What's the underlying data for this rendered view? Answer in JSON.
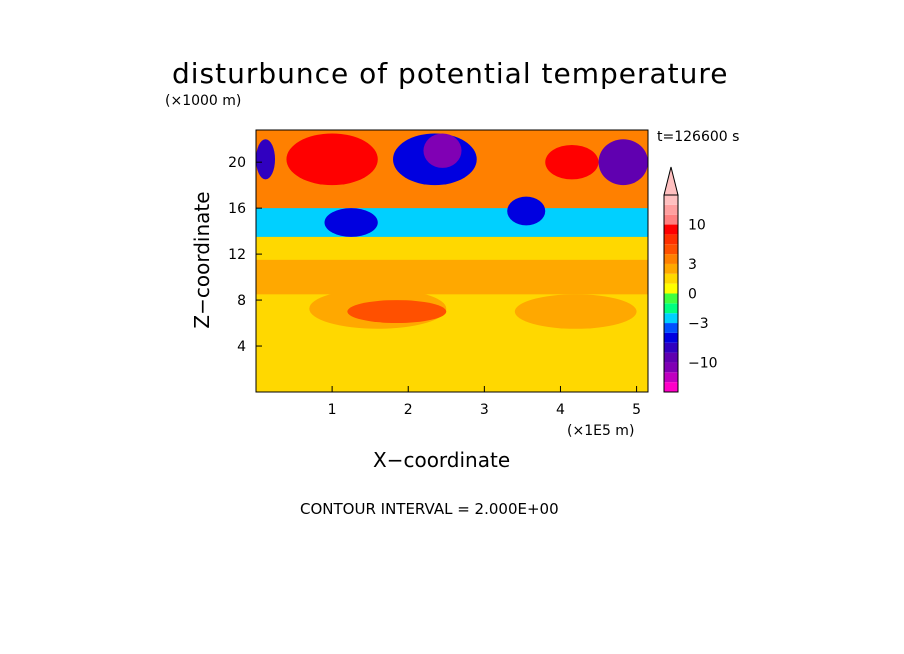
{
  "chart_data": {
    "type": "heatmap",
    "title": "disturbunce of potential temperature",
    "timestamp": "t=126600 s",
    "xlabel": "X−coordinate",
    "ylabel": "Z−coordinate",
    "xunit": "(×1E5 m)",
    "yunit": "(×1000 m)",
    "footer": "CONTOUR INTERVAL = 2.000E+00",
    "xlim": [
      0,
      5.15
    ],
    "ylim": [
      0,
      22.8
    ],
    "xticks": [
      1,
      2,
      3,
      4,
      5
    ],
    "yticks": [
      4,
      8,
      12,
      16,
      20
    ],
    "colorbar": {
      "levels": [
        -16,
        -14,
        -12,
        -10,
        -8,
        -6,
        -4,
        -3,
        -2,
        -1,
        0,
        1,
        2,
        3,
        4,
        6,
        8,
        10,
        12,
        14,
        16
      ],
      "colors": [
        "#ff00c8",
        "#c000c0",
        "#8000b4",
        "#6000b0",
        "#3000c0",
        "#0000e0",
        "#0050ff",
        "#00d0ff",
        "#00ff80",
        "#40ff40",
        "#ffff00",
        "#ffd800",
        "#ffa800",
        "#ff8000",
        "#ff5000",
        "#ff3000",
        "#ff0000",
        "#ff8080",
        "#ffa0a0",
        "#ffc0c0"
      ],
      "tick_labels": [
        "10",
        "3",
        "0",
        "−3",
        "−10"
      ],
      "tick_values": [
        10,
        3,
        0,
        -3,
        -10
      ],
      "extend": "max"
    },
    "regions": [
      {
        "x": [
          0,
          5.15
        ],
        "y": [
          0,
          22.8
        ],
        "value": 1
      },
      {
        "x": [
          0,
          5.15
        ],
        "y": [
          8.5,
          14
        ],
        "value": 2
      },
      {
        "x": [
          0,
          5.15
        ],
        "y": [
          11.5,
          13.5
        ],
        "value": 1.5
      },
      {
        "x": [
          0,
          5.15
        ],
        "y": [
          13.5,
          16.5
        ],
        "value": -3
      },
      {
        "x": [
          0,
          5.15
        ],
        "y": [
          16,
          22.8
        ],
        "value": 3
      },
      {
        "x": [
          0.7,
          2.5
        ],
        "y": [
          5.5,
          9
        ],
        "value": 2
      },
      {
        "x": [
          1.2,
          2.5
        ],
        "y": [
          6,
          8
        ],
        "value": 4
      },
      {
        "x": [
          3.4,
          5
        ],
        "y": [
          5.5,
          8.5
        ],
        "value": 2
      },
      {
        "x": [
          0.4,
          1.6
        ],
        "y": [
          18,
          22.5
        ],
        "value": 8
      },
      {
        "x": [
          3.8,
          4.5
        ],
        "y": [
          18.5,
          21.5
        ],
        "value": 8
      },
      {
        "x": [
          0,
          0.25
        ],
        "y": [
          18.5,
          22
        ],
        "value": -8
      },
      {
        "x": [
          1.8,
          2.9
        ],
        "y": [
          18,
          22.5
        ],
        "value": -6
      },
      {
        "x": [
          2.2,
          2.7
        ],
        "y": [
          19.5,
          22.5
        ],
        "value": -12
      },
      {
        "x": [
          4.5,
          5.15
        ],
        "y": [
          18,
          22
        ],
        "value": -10
      },
      {
        "x": [
          0.9,
          1.6
        ],
        "y": [
          13.5,
          16
        ],
        "value": -6
      },
      {
        "x": [
          3.3,
          3.8
        ],
        "y": [
          14.5,
          17
        ],
        "value": -5
      }
    ]
  }
}
